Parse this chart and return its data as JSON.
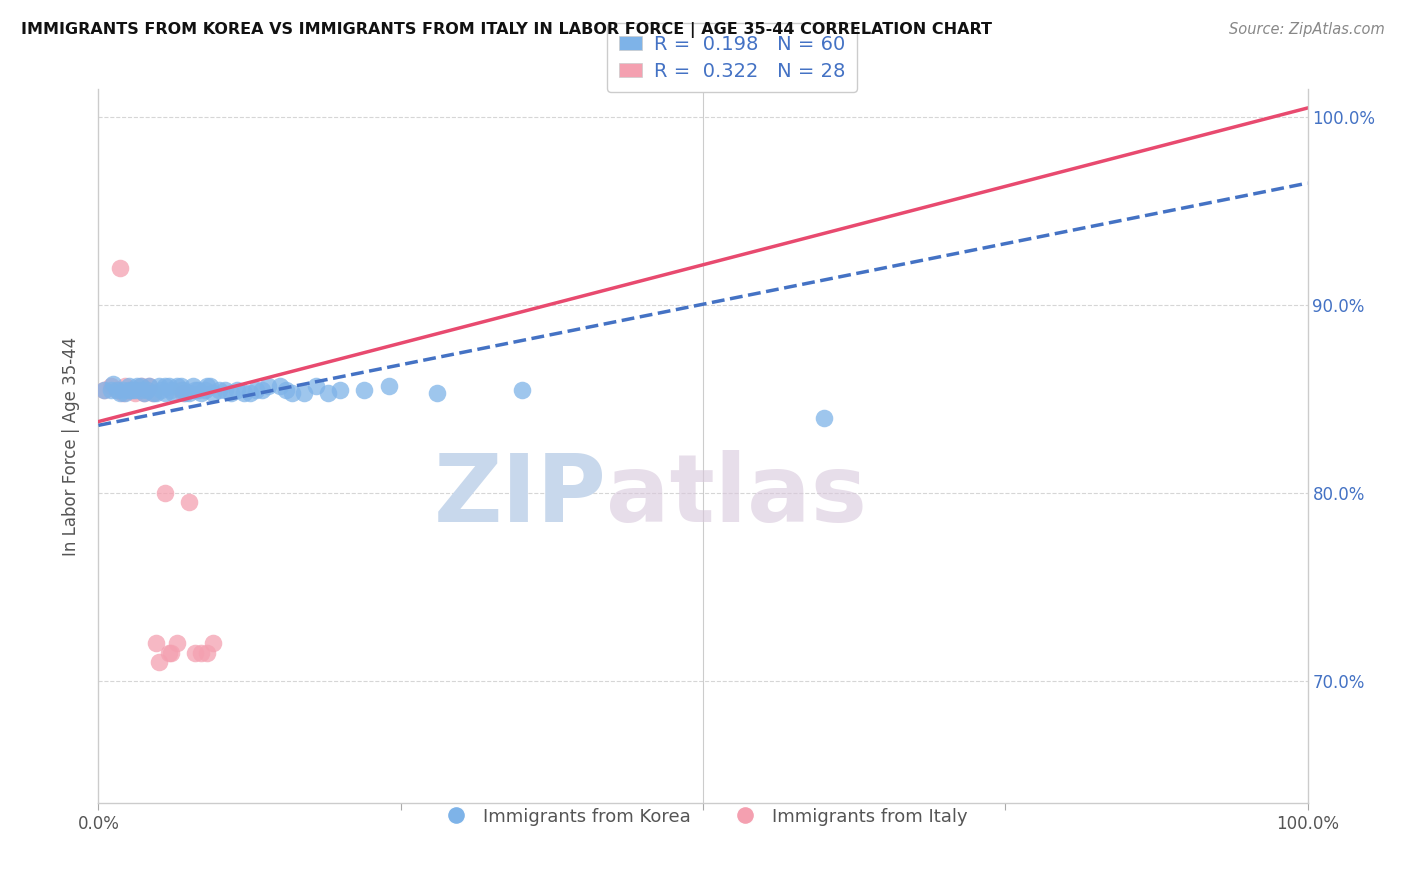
{
  "title": "IMMIGRANTS FROM KOREA VS IMMIGRANTS FROM ITALY IN LABOR FORCE | AGE 35-44 CORRELATION CHART",
  "source": "Source: ZipAtlas.com",
  "ylabel": "In Labor Force | Age 35-44",
  "xlim": [
    0.0,
    1.0
  ],
  "ylim": [
    0.635,
    1.015
  ],
  "right_yticks": [
    0.7,
    0.8,
    0.9,
    1.0
  ],
  "right_yticklabels": [
    "70.0%",
    "80.0%",
    "90.0%",
    "100.0%"
  ],
  "xticks": [
    0.0,
    0.25,
    0.5,
    0.75,
    1.0
  ],
  "xticklabels": [
    "0.0%",
    "",
    "",
    "",
    "100.0%"
  ],
  "korea_R": 0.198,
  "korea_N": 60,
  "italy_R": 0.322,
  "italy_N": 28,
  "korea_color": "#7EB3E8",
  "italy_color": "#F4A0B0",
  "korea_line_color": "#4472C4",
  "italy_line_color": "#E84A6F",
  "background_color": "#FFFFFF",
  "grid_color": "#CCCCCC",
  "watermark_color": "#DDE6F0",
  "korea_x": [
    0.005,
    0.01,
    0.012,
    0.015,
    0.018,
    0.02,
    0.022,
    0.025,
    0.025,
    0.028,
    0.03,
    0.032,
    0.035,
    0.035,
    0.038,
    0.04,
    0.042,
    0.045,
    0.048,
    0.05,
    0.052,
    0.055,
    0.055,
    0.058,
    0.06,
    0.062,
    0.065,
    0.068,
    0.07,
    0.072,
    0.075,
    0.078,
    0.08,
    0.082,
    0.085,
    0.088,
    0.09,
    0.092,
    0.095,
    0.1,
    0.105,
    0.11,
    0.115,
    0.12,
    0.125,
    0.13,
    0.135,
    0.14,
    0.15,
    0.155,
    0.16,
    0.17,
    0.18,
    0.19,
    0.2,
    0.22,
    0.24,
    0.28,
    0.35,
    0.6
  ],
  "korea_y": [
    0.855,
    0.855,
    0.858,
    0.855,
    0.853,
    0.855,
    0.853,
    0.857,
    0.855,
    0.855,
    0.855,
    0.857,
    0.857,
    0.855,
    0.853,
    0.855,
    0.857,
    0.853,
    0.853,
    0.857,
    0.855,
    0.857,
    0.853,
    0.857,
    0.855,
    0.853,
    0.857,
    0.857,
    0.855,
    0.853,
    0.853,
    0.857,
    0.855,
    0.855,
    0.853,
    0.855,
    0.857,
    0.857,
    0.853,
    0.855,
    0.855,
    0.853,
    0.855,
    0.853,
    0.853,
    0.855,
    0.855,
    0.857,
    0.857,
    0.855,
    0.853,
    0.853,
    0.857,
    0.853,
    0.855,
    0.855,
    0.857,
    0.853,
    0.855,
    0.84
  ],
  "italy_x": [
    0.005,
    0.01,
    0.015,
    0.018,
    0.02,
    0.022,
    0.025,
    0.028,
    0.03,
    0.032,
    0.035,
    0.038,
    0.04,
    0.042,
    0.045,
    0.048,
    0.05,
    0.055,
    0.058,
    0.06,
    0.065,
    0.068,
    0.07,
    0.075,
    0.08,
    0.085,
    0.09,
    0.095
  ],
  "italy_y": [
    0.855,
    0.857,
    0.855,
    0.92,
    0.853,
    0.857,
    0.855,
    0.855,
    0.853,
    0.855,
    0.857,
    0.853,
    0.855,
    0.857,
    0.853,
    0.72,
    0.71,
    0.8,
    0.715,
    0.715,
    0.72,
    0.855,
    0.853,
    0.795,
    0.715,
    0.715,
    0.715,
    0.72
  ],
  "korea_line_x0": 0.0,
  "korea_line_y0": 0.836,
  "korea_line_x1": 1.0,
  "korea_line_y1": 0.965,
  "italy_line_x0": 0.0,
  "italy_line_y0": 0.838,
  "italy_line_x1": 1.0,
  "italy_line_y1": 1.005
}
